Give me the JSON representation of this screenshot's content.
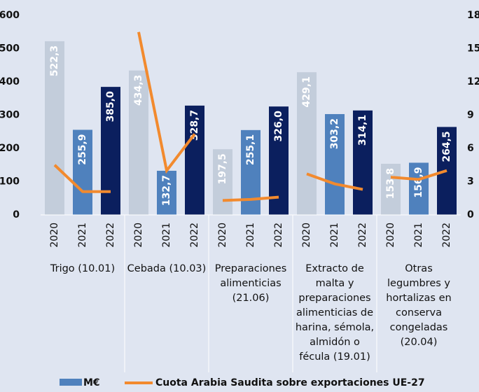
{
  "chart_data": {
    "type": "bar",
    "categories": [
      "Trigo (10.01)",
      "Cebada (10.03)",
      "Preparaciones alimenticias (21.06)",
      "Extracto de malta y preparaciones alimenticias de harina, sémola, almidón o fécula (19.01)",
      "Otras legumbres y hortalizas en conserva congeladas (20.04)"
    ],
    "years": [
      "2020",
      "2021",
      "2022"
    ],
    "bar_colors": [
      "#c3cddb",
      "#4f81bd",
      "#0b1f5e"
    ],
    "series": [
      {
        "name": "M€",
        "color": "#4f81bd",
        "values": [
          [
            522.3,
            255.9,
            385.0
          ],
          [
            434.3,
            132.7,
            328.7
          ],
          [
            197.5,
            255.1,
            326.0
          ],
          [
            429.1,
            303.2,
            314.1
          ],
          [
            153.8,
            156.9,
            264.5
          ]
        ],
        "value_labels": [
          [
            "522,3",
            "255,9",
            "385,0"
          ],
          [
            "434,3",
            "132,7",
            "328,7"
          ],
          [
            "197,5",
            "255,1",
            "326,0"
          ],
          [
            "429,1",
            "303,2",
            "314,1"
          ],
          [
            "153,8",
            "156,9",
            "264,5"
          ]
        ]
      },
      {
        "name": "Cuota Arabia Saudita sobre exportaciones UE-27",
        "color": "#f28a2e",
        "axis": "y2",
        "values": [
          [
            4.5,
            2.1,
            2.1
          ],
          [
            16.5,
            4.0,
            7.3
          ],
          [
            1.3,
            1.4,
            1.6
          ],
          [
            3.7,
            2.8,
            2.3
          ],
          [
            3.4,
            3.2,
            4.0
          ]
        ]
      }
    ],
    "ylim": [
      0,
      600
    ],
    "yticks": [
      0,
      100,
      200,
      300,
      400,
      500,
      600
    ],
    "y2lim": [
      0,
      18
    ],
    "y2ticks": [
      0,
      3,
      6,
      9,
      12,
      15,
      18
    ]
  }
}
